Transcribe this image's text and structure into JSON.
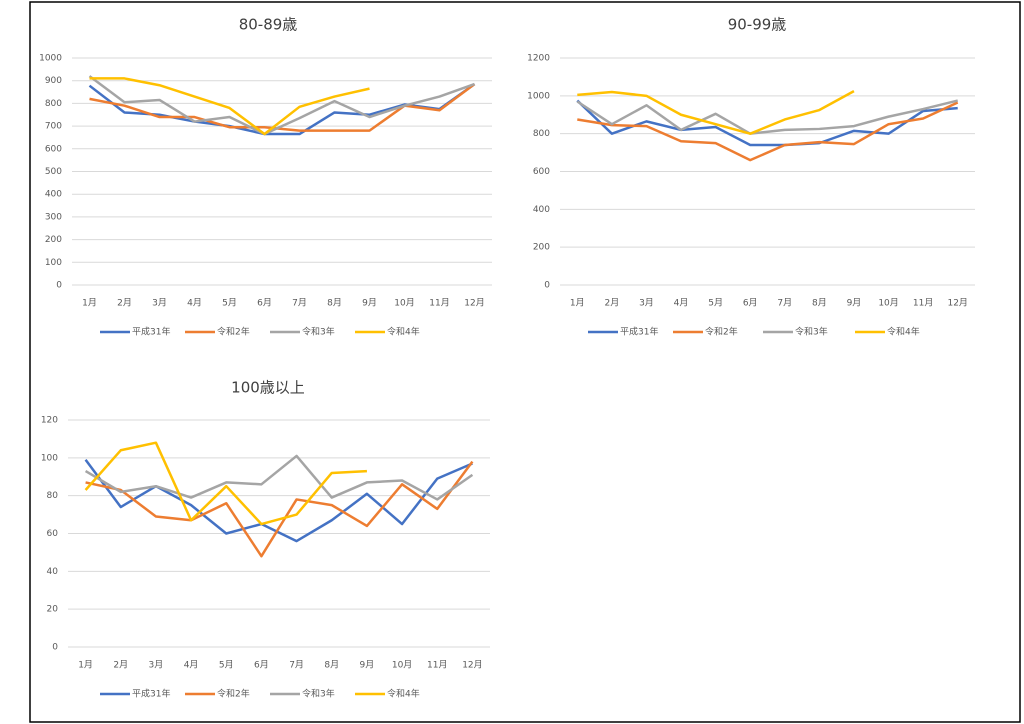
{
  "chart_data": [
    {
      "type": "line",
      "title": "80-89歳",
      "categories": [
        "1月",
        "2月",
        "3月",
        "4月",
        "5月",
        "6月",
        "7月",
        "8月",
        "9月",
        "10月",
        "11月",
        "12月"
      ],
      "ylim": [
        0,
        1000
      ],
      "yticks": [
        0,
        100,
        200,
        300,
        400,
        500,
        600,
        700,
        800,
        900,
        1000
      ],
      "grid": true,
      "legend": "bottom",
      "series": [
        {
          "name": "平成31年",
          "color": "#4472c4",
          "values": [
            878,
            760,
            750,
            720,
            700,
            665,
            665,
            760,
            750,
            795,
            775,
            885
          ]
        },
        {
          "name": "令和2年",
          "color": "#ed7d31",
          "values": [
            820,
            790,
            740,
            740,
            695,
            695,
            680,
            680,
            680,
            790,
            770,
            885
          ]
        },
        {
          "name": "令和3年",
          "color": "#a5a5a5",
          "values": [
            920,
            805,
            815,
            720,
            740,
            665,
            735,
            810,
            740,
            790,
            830,
            885
          ]
        },
        {
          "name": "令和4年",
          "color": "#ffc000",
          "values": [
            910,
            910,
            880,
            830,
            780,
            665,
            785,
            830,
            865,
            null,
            null,
            null
          ]
        }
      ]
    },
    {
      "type": "line",
      "title": "90-99歳",
      "categories": [
        "1月",
        "2月",
        "3月",
        "4月",
        "5月",
        "6月",
        "7月",
        "8月",
        "9月",
        "10月",
        "11月",
        "12月"
      ],
      "ylim": [
        0,
        1200
      ],
      "yticks": [
        0,
        200,
        400,
        600,
        800,
        1000,
        1200
      ],
      "grid": true,
      "legend": "bottom",
      "series": [
        {
          "name": "平成31年",
          "color": "#4472c4",
          "values": [
            975,
            800,
            865,
            820,
            835,
            740,
            740,
            750,
            815,
            800,
            920,
            935
          ]
        },
        {
          "name": "令和2年",
          "color": "#ed7d31",
          "values": [
            875,
            845,
            840,
            760,
            750,
            660,
            740,
            755,
            745,
            850,
            880,
            965
          ]
        },
        {
          "name": "令和3年",
          "color": "#a5a5a5",
          "values": [
            970,
            850,
            950,
            820,
            905,
            800,
            820,
            825,
            840,
            890,
            930,
            975
          ]
        },
        {
          "name": "令和4年",
          "color": "#ffc000",
          "values": [
            1005,
            1020,
            1000,
            900,
            850,
            800,
            875,
            925,
            1025,
            null,
            null,
            null
          ]
        }
      ]
    },
    {
      "type": "line",
      "title": "100歳以上",
      "categories": [
        "1月",
        "2月",
        "3月",
        "4月",
        "5月",
        "6月",
        "7月",
        "8月",
        "9月",
        "10月",
        "11月",
        "12月"
      ],
      "ylim": [
        0,
        120
      ],
      "yticks": [
        0,
        20,
        40,
        60,
        80,
        100,
        120
      ],
      "grid": true,
      "legend": "bottom",
      "series": [
        {
          "name": "平成31年",
          "color": "#4472c4",
          "values": [
            99,
            74,
            85,
            75,
            60,
            65,
            56,
            67,
            81,
            65,
            89,
            97
          ]
        },
        {
          "name": "令和2年",
          "color": "#ed7d31",
          "values": [
            87,
            83,
            69,
            67,
            76,
            48,
            78,
            75,
            64,
            86,
            73,
            98
          ]
        },
        {
          "name": "令和3年",
          "color": "#a5a5a5",
          "values": [
            93,
            82,
            85,
            79,
            87,
            86,
            101,
            79,
            87,
            88,
            78,
            91
          ]
        },
        {
          "name": "令和4年",
          "color": "#ffc000",
          "values": [
            83,
            104,
            108,
            67,
            85,
            65,
            70,
            92,
            93,
            null,
            null,
            null
          ]
        }
      ]
    }
  ]
}
